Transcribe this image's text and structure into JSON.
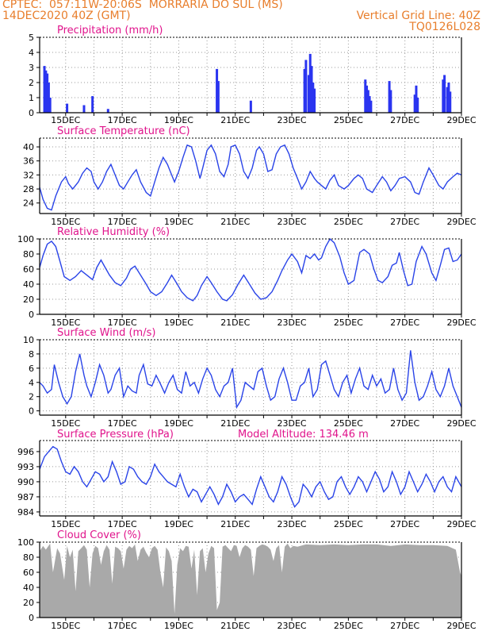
{
  "header": {
    "line1_left": "CPTEC:  057:11W-20:06S  MORRARIA DO SUL (MS)",
    "line2_left": "14DEC2020 40Z (GMT)",
    "line2_right": "Vertical Grid Line: 40Z",
    "line3_right": "TQ0126L028"
  },
  "colors": {
    "header": "#e87e2c",
    "title": "#e0148c",
    "line": "#2a44e8",
    "bar": "#2a34f0",
    "cloud": "#a9a9a9",
    "grid": "#9a9a9a"
  },
  "x_ticks": [
    "15DEC",
    "17DEC",
    "19DEC",
    "21DEC",
    "23DEC",
    "25DEC",
    "27DEC",
    "29DEC"
  ],
  "chart_data": [
    {
      "id": "precip",
      "type": "bar",
      "title": "Precipitation (mm/h)",
      "ylim": [
        0,
        5
      ],
      "yticks": [
        0,
        1,
        2,
        3,
        4,
        5
      ],
      "xlim": [
        14.08,
        29.0
      ],
      "x": [
        14.25,
        14.3,
        14.35,
        14.4,
        14.45,
        15.05,
        15.65,
        15.95,
        16.5,
        20.35,
        20.4,
        21.55,
        23.45,
        23.5,
        23.6,
        23.65,
        23.7,
        23.75,
        23.8,
        25.6,
        25.65,
        25.7,
        25.75,
        25.8,
        26.45,
        26.5,
        27.35,
        27.4,
        27.45,
        28.35,
        28.4,
        28.5,
        28.55,
        28.6
      ],
      "values": [
        3.1,
        2.8,
        2.6,
        2.0,
        1.0,
        0.6,
        0.5,
        1.1,
        0.25,
        2.9,
        2.1,
        0.8,
        2.9,
        3.5,
        2.5,
        3.9,
        3.1,
        2.0,
        1.6,
        2.2,
        1.8,
        1.5,
        1.1,
        0.8,
        2.1,
        1.5,
        1.2,
        1.8,
        1.0,
        2.2,
        2.5,
        1.7,
        2.0,
        1.4
      ]
    },
    {
      "id": "temp",
      "type": "line",
      "title": "Surface Temperature (nC)",
      "ylim": [
        21,
        42.5
      ],
      "yticks": [
        24,
        28,
        32,
        36,
        40
      ],
      "xlim": [
        14.08,
        29.0
      ],
      "x": [
        14.08,
        14.2,
        14.35,
        14.5,
        14.65,
        14.85,
        15.0,
        15.1,
        15.25,
        15.45,
        15.6,
        15.75,
        15.9,
        16.0,
        16.15,
        16.3,
        16.45,
        16.6,
        16.75,
        16.9,
        17.05,
        17.2,
        17.35,
        17.5,
        17.65,
        17.85,
        18.0,
        18.15,
        18.3,
        18.45,
        18.6,
        18.75,
        18.85,
        19.0,
        19.15,
        19.3,
        19.45,
        19.6,
        19.75,
        19.85,
        20.0,
        20.15,
        20.3,
        20.45,
        20.6,
        20.75,
        20.85,
        21.0,
        21.15,
        21.3,
        21.45,
        21.6,
        21.75,
        21.85,
        22.0,
        22.15,
        22.3,
        22.45,
        22.6,
        22.75,
        22.9,
        23.05,
        23.2,
        23.35,
        23.5,
        23.65,
        23.8,
        23.9,
        24.05,
        24.2,
        24.35,
        24.5,
        24.65,
        24.85,
        25.0,
        25.2,
        25.35,
        25.5,
        25.65,
        25.85,
        26.0,
        26.2,
        26.35,
        26.5,
        26.65,
        26.8,
        27.0,
        27.2,
        27.35,
        27.5,
        27.65,
        27.85,
        28.0,
        28.2,
        28.35,
        28.5,
        28.7,
        28.85,
        29.0
      ],
      "values": [
        28.5,
        25,
        22.5,
        22,
        26,
        30,
        31.5,
        29.5,
        28,
        30,
        32.5,
        34,
        33,
        30,
        28,
        30,
        33,
        35,
        32,
        29,
        28,
        30,
        32,
        33.5,
        30,
        27,
        26,
        30,
        34,
        37,
        35,
        32,
        30,
        33,
        37,
        40.5,
        40,
        36,
        31,
        34,
        39,
        40.5,
        38,
        33,
        31.5,
        35,
        40,
        40.5,
        38,
        33,
        31,
        34,
        39,
        40,
        38,
        33,
        33.5,
        38,
        40,
        40.5,
        38,
        34,
        31,
        28,
        30,
        33,
        31,
        30,
        29,
        28,
        30.5,
        32,
        29,
        28,
        29,
        31,
        32,
        31,
        28,
        27,
        29,
        31.5,
        30,
        27.5,
        29,
        31,
        31.5,
        30,
        27,
        26.5,
        30,
        34,
        32,
        29,
        28,
        30,
        31.5,
        32.5,
        32
      ]
    },
    {
      "id": "rh",
      "type": "line",
      "title": "Relative Humidity (%)",
      "ylim": [
        0,
        100
      ],
      "yticks": [
        0,
        20,
        40,
        60,
        80,
        100
      ],
      "xlim": [
        14.08,
        29.0
      ],
      "x": [
        14.08,
        14.2,
        14.35,
        14.5,
        14.65,
        14.8,
        14.95,
        15.15,
        15.35,
        15.55,
        15.75,
        15.95,
        16.1,
        16.25,
        16.4,
        16.55,
        16.75,
        16.95,
        17.15,
        17.3,
        17.45,
        17.65,
        17.85,
        18.0,
        18.2,
        18.4,
        18.6,
        18.75,
        18.95,
        19.1,
        19.3,
        19.5,
        19.65,
        19.8,
        20.0,
        20.15,
        20.35,
        20.55,
        20.7,
        20.9,
        21.1,
        21.3,
        21.5,
        21.7,
        21.9,
        22.1,
        22.3,
        22.5,
        22.65,
        22.85,
        23.0,
        23.2,
        23.35,
        23.5,
        23.65,
        23.8,
        23.95,
        24.05,
        24.2,
        24.35,
        24.5,
        24.7,
        24.85,
        25.0,
        25.2,
        25.4,
        25.55,
        25.75,
        25.9,
        26.05,
        26.2,
        26.4,
        26.55,
        26.7,
        26.8,
        26.95,
        27.1,
        27.25,
        27.4,
        27.6,
        27.75,
        27.95,
        28.1,
        28.25,
        28.4,
        28.55,
        28.7,
        28.85,
        29.0
      ],
      "values": [
        62,
        78,
        93,
        97,
        90,
        70,
        50,
        45,
        50,
        58,
        52,
        46,
        62,
        72,
        62,
        52,
        42,
        38,
        48,
        60,
        64,
        52,
        40,
        30,
        25,
        30,
        42,
        52,
        40,
        30,
        22,
        18,
        25,
        38,
        50,
        42,
        30,
        20,
        18,
        26,
        40,
        52,
        40,
        28,
        20,
        22,
        30,
        45,
        58,
        72,
        80,
        70,
        55,
        78,
        74,
        80,
        72,
        75,
        90,
        100,
        95,
        76,
        55,
        40,
        45,
        82,
        86,
        80,
        60,
        45,
        42,
        50,
        65,
        68,
        82,
        58,
        38,
        40,
        70,
        90,
        80,
        55,
        45,
        65,
        86,
        88,
        70,
        72,
        80
      ]
    },
    {
      "id": "wind",
      "type": "line",
      "title": "Surface Wind (m/s)",
      "ylim": [
        -0.6,
        10
      ],
      "yticks": [
        0,
        2,
        4,
        6,
        8,
        10
      ],
      "xlim": [
        14.08,
        29.0
      ],
      "x": [
        14.08,
        14.2,
        14.35,
        14.5,
        14.6,
        14.75,
        14.9,
        15.05,
        15.2,
        15.35,
        15.5,
        15.65,
        15.75,
        15.9,
        16.05,
        16.2,
        16.35,
        16.5,
        16.6,
        16.75,
        16.9,
        17.05,
        17.2,
        17.35,
        17.5,
        17.6,
        17.75,
        17.9,
        18.05,
        18.2,
        18.35,
        18.5,
        18.65,
        18.8,
        18.95,
        19.1,
        19.25,
        19.4,
        19.55,
        19.7,
        19.85,
        20.0,
        20.15,
        20.3,
        20.45,
        20.6,
        20.75,
        20.9,
        21.05,
        21.2,
        21.35,
        21.5,
        21.65,
        21.8,
        21.95,
        22.1,
        22.25,
        22.4,
        22.55,
        22.7,
        22.85,
        23.0,
        23.15,
        23.3,
        23.45,
        23.6,
        23.75,
        23.9,
        24.05,
        24.2,
        24.35,
        24.5,
        24.65,
        24.8,
        24.95,
        25.1,
        25.25,
        25.4,
        25.55,
        25.7,
        25.85,
        26.0,
        26.15,
        26.3,
        26.45,
        26.6,
        26.75,
        26.9,
        27.05,
        27.2,
        27.35,
        27.5,
        27.65,
        27.8,
        27.95,
        28.1,
        28.25,
        28.4,
        28.55,
        28.7,
        28.85,
        29.0
      ],
      "values": [
        4,
        3.5,
        2.5,
        3,
        6.5,
        4,
        2,
        1,
        2,
        5.5,
        8,
        5,
        3.5,
        2,
        4,
        6.5,
        5,
        2.5,
        3,
        5,
        6,
        2,
        3.5,
        2.8,
        2.5,
        5,
        6.5,
        3.8,
        3.5,
        5,
        3.8,
        2.5,
        4,
        5,
        3,
        2.5,
        5.5,
        3.5,
        4,
        2.5,
        4.5,
        6,
        5,
        3,
        2,
        3.5,
        4,
        6,
        0.5,
        1.5,
        4,
        3.5,
        3,
        5.5,
        6,
        3.5,
        1.5,
        2,
        4.5,
        6,
        4,
        1.5,
        1.5,
        3.5,
        4,
        6,
        2,
        3,
        6.5,
        7,
        5,
        3,
        2,
        4,
        5,
        2.5,
        4.5,
        6,
        3.5,
        3,
        5,
        3.5,
        4.5,
        2.5,
        3,
        6,
        3,
        1.5,
        2.5,
        8.5,
        4,
        1.5,
        2,
        3.5,
        5.5,
        3,
        2,
        3.5,
        6,
        3.5,
        2,
        0.5
      ]
    },
    {
      "id": "pressure",
      "type": "line",
      "title": "Surface Pressure (hPa)",
      "note": "Model Altitude: 134.46 m",
      "ylim": [
        983.2,
        998.2
      ],
      "yticks": [
        984,
        987,
        990,
        993,
        996
      ],
      "xlim": [
        14.08,
        29.0
      ],
      "x": [
        14.08,
        14.25,
        14.4,
        14.55,
        14.7,
        14.85,
        15.0,
        15.15,
        15.3,
        15.45,
        15.6,
        15.75,
        15.9,
        16.05,
        16.2,
        16.35,
        16.5,
        16.65,
        16.8,
        16.95,
        17.1,
        17.25,
        17.4,
        17.55,
        17.7,
        17.85,
        18.0,
        18.15,
        18.3,
        18.45,
        18.6,
        18.75,
        18.9,
        19.05,
        19.2,
        19.35,
        19.5,
        19.65,
        19.8,
        19.95,
        20.1,
        20.25,
        20.4,
        20.55,
        20.7,
        20.85,
        21.0,
        21.15,
        21.3,
        21.45,
        21.6,
        21.75,
        21.9,
        22.05,
        22.2,
        22.35,
        22.5,
        22.65,
        22.8,
        22.95,
        23.1,
        23.25,
        23.4,
        23.55,
        23.7,
        23.85,
        24.0,
        24.15,
        24.3,
        24.45,
        24.6,
        24.75,
        24.9,
        25.05,
        25.2,
        25.35,
        25.5,
        25.65,
        25.8,
        25.95,
        26.1,
        26.25,
        26.4,
        26.55,
        26.7,
        26.85,
        27.0,
        27.15,
        27.3,
        27.45,
        27.6,
        27.75,
        27.9,
        28.05,
        28.2,
        28.35,
        28.5,
        28.65,
        28.8,
        29.0
      ],
      "values": [
        992.5,
        995,
        996,
        997,
        996.5,
        994,
        992,
        991.5,
        993,
        992,
        990,
        989,
        990.5,
        992,
        991.5,
        990,
        991,
        994,
        992,
        989.5,
        990,
        993,
        992.5,
        991,
        990,
        989.5,
        991,
        993.5,
        992,
        991,
        990,
        989.5,
        989,
        991.5,
        989,
        987,
        988.5,
        988,
        986,
        987.5,
        989,
        987.5,
        985.5,
        987,
        989.5,
        988,
        986,
        987,
        987.5,
        986.5,
        985.5,
        988.5,
        991,
        989,
        987,
        986,
        988,
        991,
        989.5,
        987,
        985,
        986,
        989.5,
        988.5,
        987,
        989,
        990,
        988,
        986.5,
        987,
        990,
        991,
        989,
        987.5,
        989,
        991,
        990,
        988,
        990,
        992,
        990.5,
        988,
        989,
        992,
        990,
        987.5,
        989,
        992,
        990,
        988,
        989.5,
        991.5,
        990,
        988,
        990,
        991,
        989,
        988,
        991,
        989
      ]
    },
    {
      "id": "cloud",
      "type": "area",
      "title": "Cloud Cover (%)",
      "ylim": [
        0,
        100
      ],
      "yticks": [
        0,
        20,
        40,
        60,
        80,
        100
      ],
      "xlim": [
        14.08,
        29.0
      ],
      "x": [
        14.08,
        14.2,
        14.3,
        14.45,
        14.55,
        14.7,
        14.8,
        14.95,
        15.05,
        15.15,
        15.25,
        15.35,
        15.45,
        15.55,
        15.65,
        15.75,
        15.85,
        15.95,
        16.05,
        16.15,
        16.25,
        16.35,
        16.45,
        16.55,
        16.65,
        16.75,
        16.85,
        16.95,
        17.05,
        17.15,
        17.25,
        17.35,
        17.45,
        17.55,
        17.65,
        17.75,
        17.85,
        17.95,
        18.05,
        18.15,
        18.25,
        18.35,
        18.45,
        18.55,
        18.65,
        18.75,
        18.85,
        18.95,
        19.05,
        19.15,
        19.25,
        19.35,
        19.45,
        19.55,
        19.65,
        19.75,
        19.85,
        19.95,
        20.05,
        20.15,
        20.25,
        20.35,
        20.45,
        20.55,
        20.65,
        20.75,
        20.85,
        20.95,
        21.05,
        21.15,
        21.25,
        21.35,
        21.45,
        21.55,
        21.65,
        21.75,
        21.85,
        21.95,
        22.05,
        22.15,
        22.25,
        22.35,
        22.45,
        22.55,
        22.65,
        22.75,
        22.85,
        22.95,
        23.05,
        23.2,
        23.5,
        24.0,
        24.5,
        25.0,
        25.5,
        26.0,
        26.5,
        27.0,
        27.5,
        28.0,
        28.5,
        28.8,
        28.95,
        29.0
      ],
      "values": [
        88,
        95,
        90,
        98,
        60,
        92,
        85,
        50,
        95,
        80,
        90,
        35,
        88,
        92,
        96,
        90,
        40,
        85,
        95,
        92,
        70,
        88,
        96,
        90,
        45,
        94,
        92,
        88,
        65,
        90,
        95,
        92,
        97,
        75,
        90,
        94,
        86,
        80,
        92,
        95,
        90,
        60,
        40,
        93,
        88,
        75,
        5,
        70,
        92,
        88,
        95,
        94,
        65,
        90,
        30,
        88,
        92,
        60,
        85,
        95,
        92,
        10,
        20,
        94,
        96,
        92,
        88,
        96,
        95,
        80,
        92,
        96,
        94,
        90,
        55,
        92,
        95,
        97,
        96,
        94,
        90,
        75,
        92,
        96,
        60,
        94,
        98,
        92,
        95,
        94,
        97,
        96,
        97,
        96,
        97,
        97,
        95,
        97,
        96,
        96,
        95,
        90,
        60,
        55
      ]
    }
  ],
  "panels": [
    {
      "title": "Precipitation (mm/h)",
      "extra": ""
    },
    {
      "title": "Surface Temperature (nC)",
      "extra": ""
    },
    {
      "title": "Relative Humidity (%)",
      "extra": ""
    },
    {
      "title": "Surface Wind (m/s)",
      "extra": ""
    },
    {
      "title": "Surface Pressure (hPa)",
      "extra": "Model Altitude: 134.46 m"
    },
    {
      "title": "Cloud Cover (%)",
      "extra": ""
    }
  ]
}
